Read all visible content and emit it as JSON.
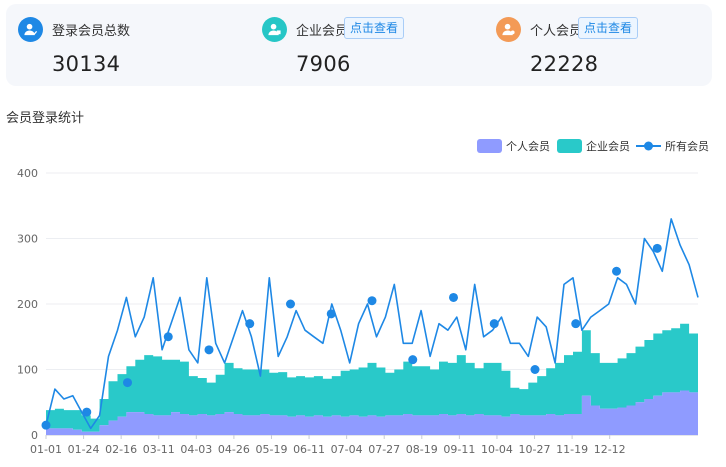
{
  "stats": [
    {
      "label": "登录会员总数",
      "value": "30134",
      "icon": "user-group-icon",
      "color": "#1e88e5"
    },
    {
      "label": "企业会员",
      "value": "7906",
      "link": "点击查看",
      "icon": "enterprise-user-icon",
      "color": "#26c6c6"
    },
    {
      "label": "个人会员",
      "value": "22228",
      "link": "点击查看",
      "icon": "personal-user-icon",
      "color": "#f39a56"
    }
  ],
  "section_title": "会员登录统计",
  "chart_data": {
    "type": "area",
    "xlabel": "",
    "ylabel": "",
    "ylim": [
      0,
      400
    ],
    "yticks": [
      0,
      100,
      200,
      300,
      400
    ],
    "xtick_labels": [
      "01-01",
      "01-24",
      "02-16",
      "03-11",
      "04-03",
      "04-26",
      "05-19",
      "06-11",
      "07-04",
      "07-27",
      "08-19",
      "09-11",
      "10-04",
      "10-27",
      "11-19",
      "12-12"
    ],
    "x_range": [
      "01-01",
      "12-31"
    ],
    "legend_position": "top-right",
    "series": [
      {
        "name": "个人会员",
        "kind": "stacked-area",
        "color": "#8f9bff",
        "values": [
          10,
          10,
          10,
          8,
          5,
          5,
          15,
          22,
          28,
          35,
          35,
          32,
          30,
          30,
          35,
          32,
          30,
          32,
          30,
          32,
          35,
          32,
          30,
          30,
          32,
          30,
          30,
          28,
          30,
          28,
          30,
          28,
          30,
          28,
          30,
          28,
          30,
          28,
          30,
          30,
          32,
          30,
          30,
          30,
          32,
          30,
          32,
          30,
          32,
          30,
          30,
          28,
          32,
          30,
          30,
          30,
          32,
          30,
          32,
          32,
          60,
          45,
          40,
          40,
          42,
          45,
          50,
          55,
          60,
          65,
          65,
          68,
          65,
          62
        ]
      },
      {
        "name": "企业会员",
        "kind": "stacked-area",
        "color": "#29c9c9",
        "values": [
          28,
          30,
          28,
          30,
          25,
          20,
          40,
          60,
          65,
          70,
          80,
          90,
          90,
          85,
          80,
          80,
          60,
          55,
          50,
          60,
          75,
          70,
          70,
          70,
          68,
          65,
          66,
          60,
          60,
          60,
          60,
          58,
          60,
          70,
          70,
          75,
          80,
          75,
          65,
          70,
          80,
          75,
          75,
          70,
          80,
          80,
          90,
          80,
          70,
          80,
          80,
          70,
          40,
          40,
          50,
          60,
          70,
          80,
          90,
          95,
          100,
          80,
          70,
          70,
          75,
          80,
          85,
          90,
          95,
          95,
          98,
          102,
          90,
          70
        ]
      },
      {
        "name": "所有会员",
        "kind": "line",
        "color": "#1e88e5",
        "values": [
          15,
          70,
          55,
          60,
          35,
          10,
          30,
          120,
          160,
          210,
          150,
          180,
          240,
          130,
          170,
          210,
          130,
          110,
          240,
          140,
          110,
          150,
          190,
          150,
          90,
          240,
          120,
          150,
          190,
          160,
          150,
          140,
          200,
          160,
          110,
          170,
          200,
          150,
          180,
          230,
          140,
          140,
          190,
          120,
          170,
          160,
          180,
          130,
          230,
          150,
          160,
          180,
          140,
          140,
          120,
          180,
          165,
          110,
          230,
          240,
          160,
          180,
          190,
          200,
          240,
          230,
          200,
          300,
          280,
          250,
          330,
          290,
          260,
          210
        ],
        "markers": [
          [
            0,
            15
          ],
          [
            10,
            35
          ],
          [
            20,
            80
          ],
          [
            30,
            150
          ],
          [
            40,
            130
          ],
          [
            50,
            170
          ],
          [
            60,
            200
          ],
          [
            70,
            185
          ],
          [
            80,
            205
          ],
          [
            90,
            115
          ],
          [
            100,
            210
          ],
          [
            110,
            170
          ],
          [
            120,
            100
          ],
          [
            130,
            170
          ],
          [
            140,
            250
          ],
          [
            150,
            285
          ]
        ]
      }
    ]
  }
}
